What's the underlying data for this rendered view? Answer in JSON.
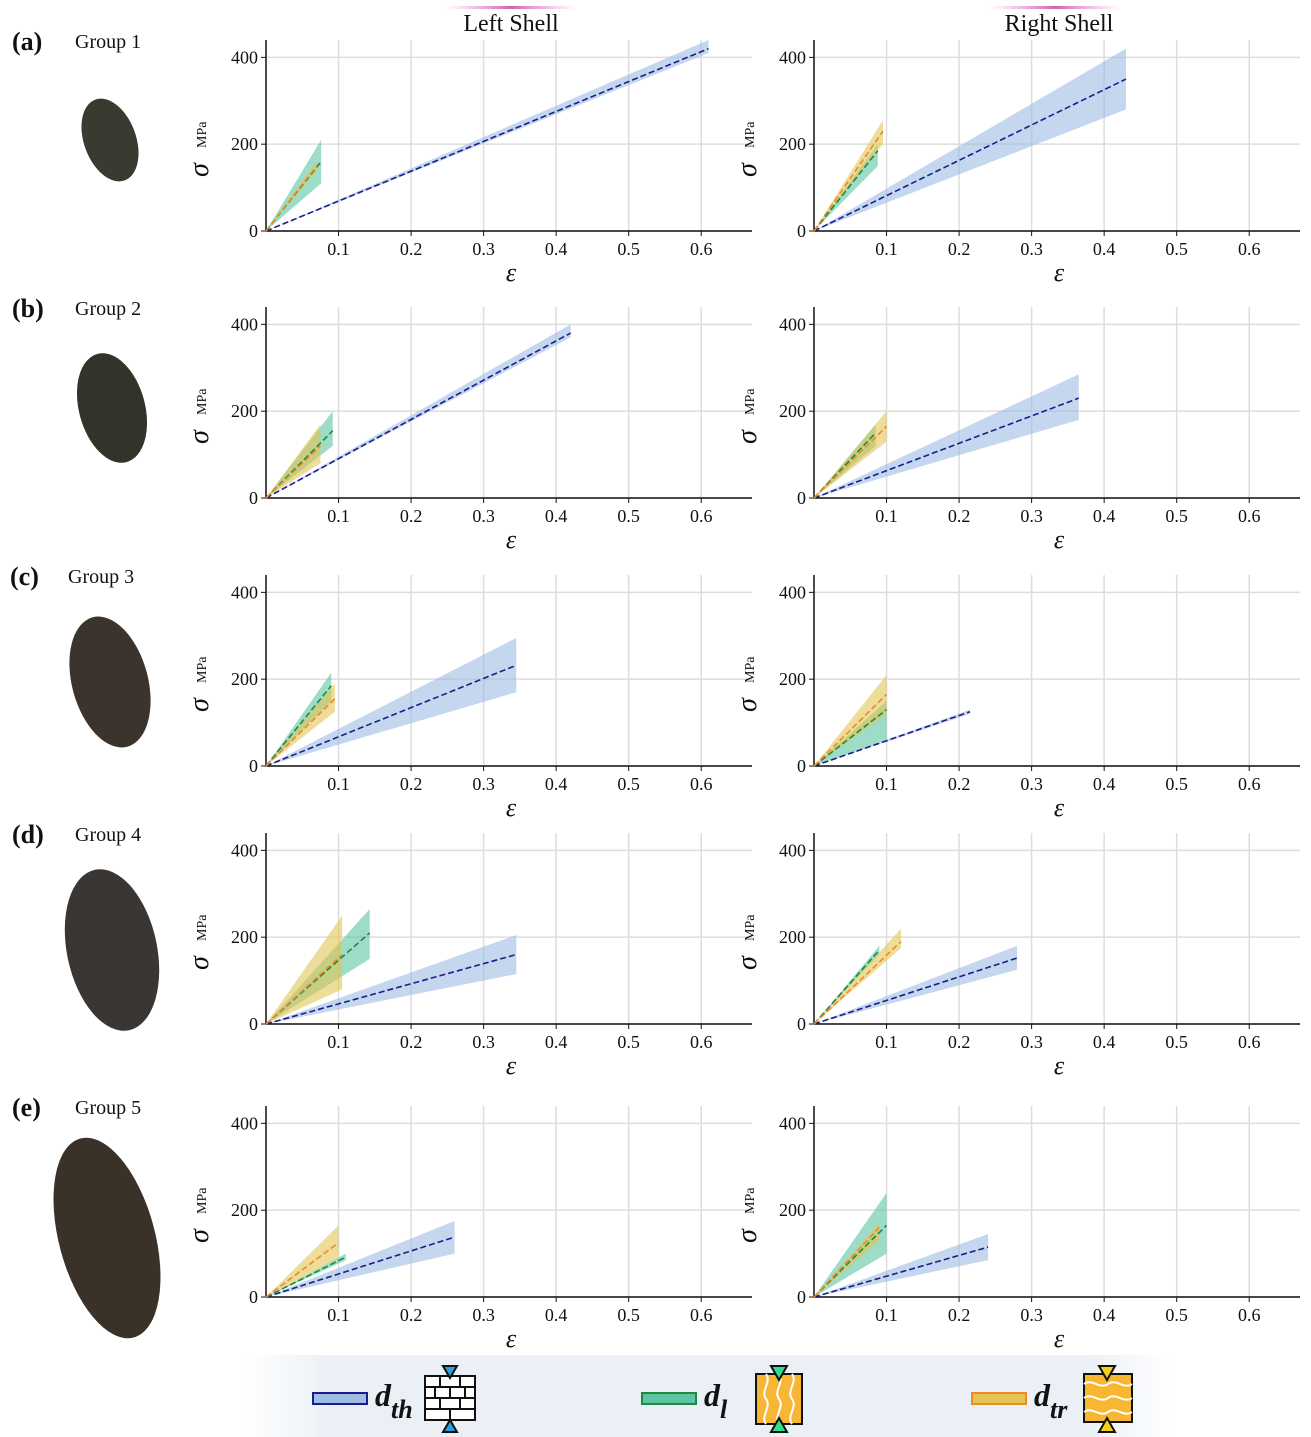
{
  "column_titles": [
    "Left Shell",
    "Right Shell"
  ],
  "rows": [
    {
      "label": "(a)",
      "group": "Group 1"
    },
    {
      "label": "(b)",
      "group": "Group 2"
    },
    {
      "label": "(c)",
      "group": "Group 3"
    },
    {
      "label": "(d)",
      "group": "Group 4"
    },
    {
      "label": "(e)",
      "group": "Group 5"
    }
  ],
  "axes": {
    "xlabel": "ε",
    "ylabel": "σ",
    "yunit": "MPa",
    "xlim": [
      0,
      0.67
    ],
    "ylim": [
      0,
      440
    ],
    "xticks": [
      0.1,
      0.2,
      0.3,
      0.4,
      0.5,
      0.6
    ],
    "yticks": [
      0,
      200,
      400
    ],
    "grid": true
  },
  "legend": [
    {
      "name": "d",
      "subscript": "th",
      "color": "#1c1c8f",
      "fill": "#9dbde3"
    },
    {
      "name": "d",
      "subscript": "l",
      "color": "#1f8a3c",
      "fill": "#5cc4a0"
    },
    {
      "name": "d",
      "subscript": "tr",
      "color": "#f08a24",
      "fill": "#e3c455"
    }
  ],
  "chart_data": [
    {
      "type": "line",
      "series": [
        {
          "x": [
            0,
            0.61
          ],
          "values": [
            0,
            420
          ],
          "lower": [
            0,
            410
          ],
          "upper": [
            0,
            440
          ]
        },
        {
          "x": [
            0,
            0.076
          ],
          "values": [
            0,
            160
          ],
          "lower": [
            0,
            110
          ],
          "upper": [
            0,
            210
          ]
        },
        {
          "x": [
            0,
            0.07
          ],
          "values": [
            0,
            150
          ],
          "lower": [
            0,
            140
          ],
          "upper": [
            0,
            160
          ]
        }
      ]
    },
    {
      "type": "line",
      "series": [
        {
          "x": [
            0,
            0.43
          ],
          "values": [
            0,
            350
          ],
          "lower": [
            0,
            280
          ],
          "upper": [
            0,
            420
          ]
        },
        {
          "x": [
            0,
            0.088
          ],
          "values": [
            0,
            185
          ],
          "lower": [
            0,
            150
          ],
          "upper": [
            0,
            200
          ]
        },
        {
          "x": [
            0,
            0.095
          ],
          "values": [
            0,
            230
          ],
          "lower": [
            0,
            200
          ],
          "upper": [
            0,
            255
          ]
        }
      ]
    },
    {
      "type": "line",
      "series": [
        {
          "x": [
            0,
            0.42
          ],
          "values": [
            0,
            380
          ],
          "lower": [
            0,
            370
          ],
          "upper": [
            0,
            400
          ]
        },
        {
          "x": [
            0,
            0.092
          ],
          "values": [
            0,
            155
          ],
          "lower": [
            0,
            120
          ],
          "upper": [
            0,
            200
          ]
        },
        {
          "x": [
            0,
            0.075
          ],
          "values": [
            0,
            120
          ],
          "lower": [
            0,
            80
          ],
          "upper": [
            0,
            170
          ]
        }
      ]
    },
    {
      "type": "line",
      "series": [
        {
          "x": [
            0,
            0.365
          ],
          "values": [
            0,
            230
          ],
          "lower": [
            0,
            180
          ],
          "upper": [
            0,
            285
          ]
        },
        {
          "x": [
            0,
            0.085
          ],
          "values": [
            0,
            150
          ],
          "lower": [
            0,
            120
          ],
          "upper": [
            0,
            170
          ]
        },
        {
          "x": [
            0,
            0.1
          ],
          "values": [
            0,
            165
          ],
          "lower": [
            0,
            130
          ],
          "upper": [
            0,
            200
          ]
        }
      ]
    },
    {
      "type": "line",
      "series": [
        {
          "x": [
            0,
            0.345
          ],
          "values": [
            0,
            232
          ],
          "lower": [
            0,
            170
          ],
          "upper": [
            0,
            295
          ]
        },
        {
          "x": [
            0,
            0.09
          ],
          "values": [
            0,
            185
          ],
          "lower": [
            0,
            150
          ],
          "upper": [
            0,
            215
          ]
        },
        {
          "x": [
            0,
            0.095
          ],
          "values": [
            0,
            155
          ],
          "lower": [
            0,
            125
          ],
          "upper": [
            0,
            190
          ]
        }
      ]
    },
    {
      "type": "line",
      "series": [
        {
          "x": [
            0,
            0.215
          ],
          "values": [
            0,
            125
          ],
          "lower": [
            0,
            120
          ],
          "upper": [
            0,
            130
          ]
        },
        {
          "x": [
            0,
            0.1
          ],
          "values": [
            0,
            130
          ],
          "lower": [
            0,
            60
          ],
          "upper": [
            0,
            150
          ]
        },
        {
          "x": [
            0,
            0.1
          ],
          "values": [
            0,
            165
          ],
          "lower": [
            0,
            120
          ],
          "upper": [
            0,
            210
          ]
        }
      ]
    },
    {
      "type": "line",
      "series": [
        {
          "x": [
            0,
            0.345
          ],
          "values": [
            0,
            160
          ],
          "lower": [
            0,
            115
          ],
          "upper": [
            0,
            205
          ]
        },
        {
          "x": [
            0,
            0.143
          ],
          "values": [
            0,
            210
          ],
          "lower": [
            0,
            150
          ],
          "upper": [
            0,
            265
          ]
        },
        {
          "x": [
            0,
            0.105
          ],
          "values": [
            0,
            160
          ],
          "lower": [
            0,
            80
          ],
          "upper": [
            0,
            250
          ]
        }
      ]
    },
    {
      "type": "line",
      "series": [
        {
          "x": [
            0,
            0.28
          ],
          "values": [
            0,
            152
          ],
          "lower": [
            0,
            125
          ],
          "upper": [
            0,
            180
          ]
        },
        {
          "x": [
            0,
            0.09
          ],
          "values": [
            0,
            170
          ],
          "lower": [
            0,
            160
          ],
          "upper": [
            0,
            180
          ]
        },
        {
          "x": [
            0,
            0.12
          ],
          "values": [
            0,
            190
          ],
          "lower": [
            0,
            175
          ],
          "upper": [
            0,
            220
          ]
        }
      ]
    },
    {
      "type": "line",
      "series": [
        {
          "x": [
            0,
            0.26
          ],
          "values": [
            0,
            138
          ],
          "lower": [
            0,
            100
          ],
          "upper": [
            0,
            175
          ]
        },
        {
          "x": [
            0,
            0.11
          ],
          "values": [
            0,
            92
          ],
          "lower": [
            0,
            85
          ],
          "upper": [
            0,
            100
          ]
        },
        {
          "x": [
            0,
            0.1
          ],
          "values": [
            0,
            125
          ],
          "lower": [
            0,
            90
          ],
          "upper": [
            0,
            165
          ]
        }
      ]
    },
    {
      "type": "line",
      "series": [
        {
          "x": [
            0,
            0.24
          ],
          "values": [
            0,
            115
          ],
          "lower": [
            0,
            85
          ],
          "upper": [
            0,
            145
          ]
        },
        {
          "x": [
            0,
            0.1
          ],
          "values": [
            0,
            165
          ],
          "lower": [
            0,
            100
          ],
          "upper": [
            0,
            240
          ]
        },
        {
          "x": [
            0,
            0.09
          ],
          "values": [
            0,
            160
          ],
          "lower": [
            0,
            130
          ],
          "upper": [
            0,
            170
          ]
        }
      ]
    }
  ]
}
